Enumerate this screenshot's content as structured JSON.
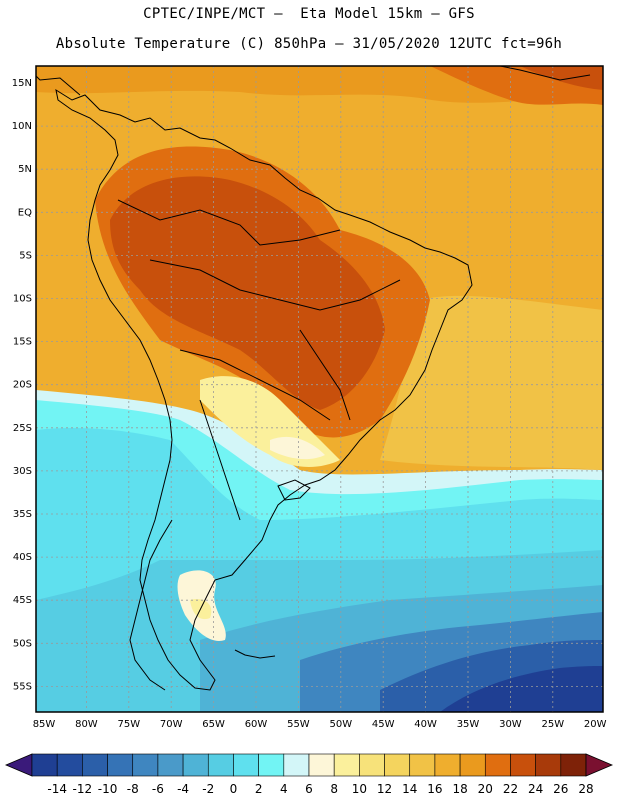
{
  "header": {
    "line1": "CPTEC/INPE/MCT –  Eta Model 15km – GFS",
    "line2": "Absolute Temperature (C) 850hPa – 31/05/2020 12UTC fct=96h"
  },
  "map": {
    "lat_labels": [
      "15N",
      "10N",
      "5N",
      "EQ",
      "5S",
      "10S",
      "15S",
      "20S",
      "25S",
      "30S",
      "35S",
      "40S",
      "45S",
      "50S",
      "55S"
    ],
    "lon_labels": [
      "85W",
      "80W",
      "75W",
      "70W",
      "65W",
      "60W",
      "55W",
      "50W",
      "45W",
      "40W",
      "35W",
      "30W",
      "25W",
      "20W"
    ]
  },
  "colorbar": {
    "labels": [
      "-14",
      "-12",
      "-10",
      "-8",
      "-6",
      "-4",
      "-2",
      "0",
      "2",
      "4",
      "6",
      "8",
      "10",
      "12",
      "14",
      "16",
      "18",
      "20",
      "22",
      "24",
      "26",
      "28"
    ],
    "colors": [
      "#1f3f93",
      "#234c9e",
      "#2b5fa9",
      "#3573b6",
      "#3f86c0",
      "#4a9ac9",
      "#4fb3d6",
      "#56cde3",
      "#5fe0ee",
      "#72f4f4",
      "#d3f6f8",
      "#fdf6d8",
      "#fbf09c",
      "#f7e27a",
      "#f4d45e",
      "#f1c246",
      "#efae2e",
      "#ea9a1e",
      "#e06e10",
      "#c8500c",
      "#a83a0a",
      "#7e2208"
    ],
    "low_arrow": "#3a1a7a",
    "high_arrow": "#7a1030"
  }
}
